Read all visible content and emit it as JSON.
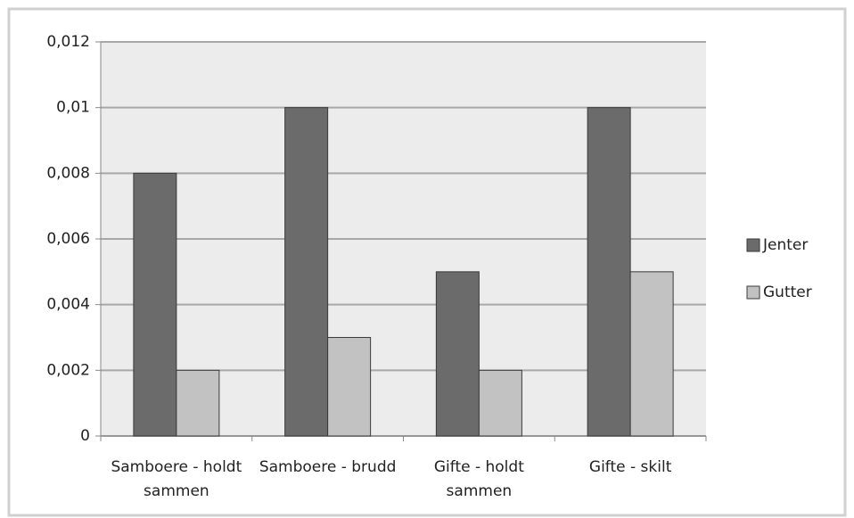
{
  "chart_data": {
    "type": "bar",
    "categories": [
      "Samboere - holdt sammen",
      "Samboere - brudd",
      "Gifte - holdt sammen",
      "Gifte - skilt"
    ],
    "series": [
      {
        "name": "Jenter",
        "color": "#6b6b6b",
        "values": [
          0.008,
          0.01,
          0.005,
          0.01
        ]
      },
      {
        "name": "Gutter",
        "color": "#c2c2c2",
        "values": [
          0.002,
          0.003,
          0.002,
          0.005
        ]
      }
    ],
    "ylim": [
      0,
      0.012
    ],
    "yticks": [
      0,
      {
        "value": 0.002,
        "label": "0,002"
      },
      {
        "value": 0.004,
        "label": "0,004"
      },
      {
        "value": 0.006,
        "label": "0,006"
      },
      {
        "value": 0.008,
        "label": "0,008"
      },
      {
        "value": 0.01,
        "label": "0,01"
      },
      {
        "value": 0.012,
        "label": "0,012"
      }
    ],
    "grid": true,
    "legend": "right"
  }
}
